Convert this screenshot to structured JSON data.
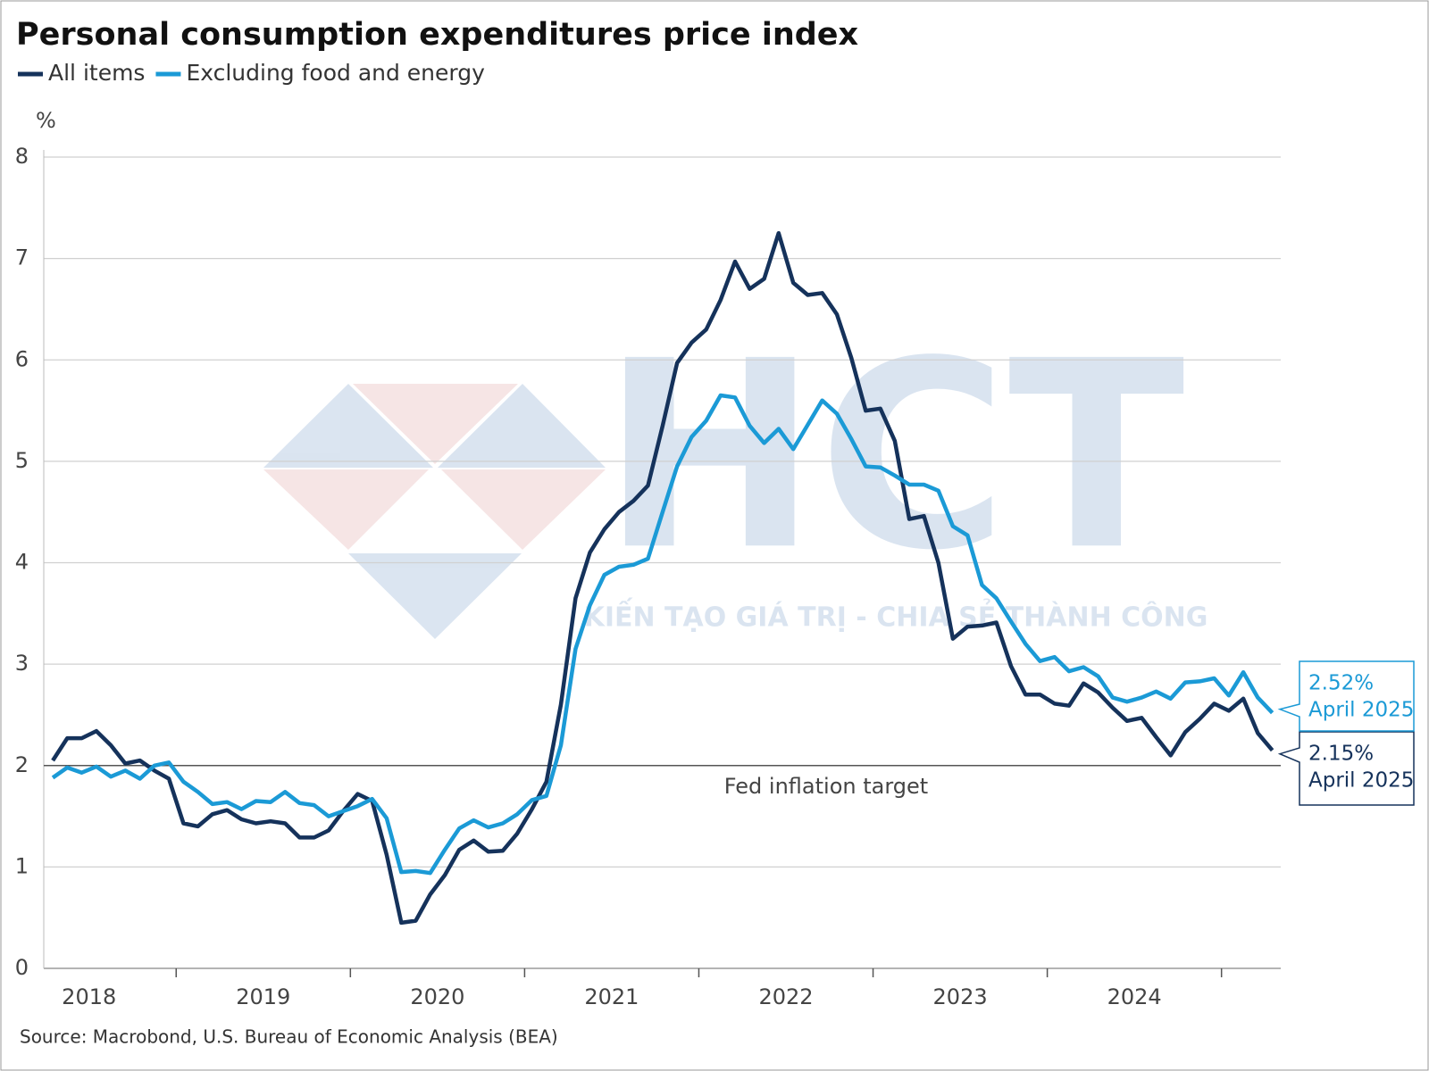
{
  "chart_data": {
    "type": "line",
    "title": "Personal consumption expenditures price index",
    "ylabel": "%",
    "source": "Source: Macrobond, U.S. Bureau of Economic Analysis (BEA)",
    "watermark": {
      "logo": "HCT",
      "tagline": "KIẾN TẠO GIÁ TRỊ - CHIA SẺ THÀNH CÔNG"
    },
    "x": [
      2018.292,
      2018.375,
      2018.458,
      2018.542,
      2018.625,
      2018.708,
      2018.792,
      2018.875,
      2018.958,
      2019.042,
      2019.125,
      2019.208,
      2019.292,
      2019.375,
      2019.458,
      2019.542,
      2019.625,
      2019.708,
      2019.792,
      2019.875,
      2019.958,
      2020.042,
      2020.125,
      2020.208,
      2020.292,
      2020.375,
      2020.458,
      2020.542,
      2020.625,
      2020.708,
      2020.792,
      2020.875,
      2020.958,
      2021.042,
      2021.125,
      2021.208,
      2021.292,
      2021.375,
      2021.458,
      2021.542,
      2021.625,
      2021.708,
      2021.792,
      2021.875,
      2021.958,
      2022.042,
      2022.125,
      2022.208,
      2022.292,
      2022.375,
      2022.458,
      2022.542,
      2022.625,
      2022.708,
      2022.792,
      2022.875,
      2022.958,
      2023.042,
      2023.125,
      2023.208,
      2023.292,
      2023.375,
      2023.458,
      2023.542,
      2023.625,
      2023.708,
      2023.792,
      2023.875,
      2023.958,
      2024.042,
      2024.125,
      2024.208,
      2024.292,
      2024.375,
      2024.458,
      2024.542,
      2024.625,
      2024.708,
      2024.792,
      2024.875,
      2024.958,
      2025.042,
      2025.125,
      2025.208,
      2025.292
    ],
    "series": [
      {
        "name": "All items",
        "color": "#15325b",
        "values": [
          2.05,
          2.27,
          2.27,
          2.34,
          2.2,
          2.02,
          2.05,
          1.95,
          1.87,
          1.43,
          1.4,
          1.52,
          1.56,
          1.47,
          1.43,
          1.45,
          1.43,
          1.29,
          1.29,
          1.36,
          1.55,
          1.72,
          1.65,
          1.12,
          0.45,
          0.47,
          0.73,
          0.92,
          1.17,
          1.26,
          1.15,
          1.16,
          1.33,
          1.57,
          1.84,
          2.6,
          3.65,
          4.1,
          4.33,
          4.5,
          4.61,
          4.76,
          5.35,
          5.97,
          6.17,
          6.3,
          6.59,
          6.97,
          6.7,
          6.8,
          7.25,
          6.76,
          6.64,
          6.66,
          6.45,
          6.02,
          5.5,
          5.52,
          5.2,
          4.43,
          4.46,
          4.0,
          3.25,
          3.37,
          3.38,
          3.41,
          2.98,
          2.7,
          2.7,
          2.61,
          2.59,
          2.81,
          2.72,
          2.57,
          2.44,
          2.47,
          2.28,
          2.1,
          2.33,
          2.46,
          2.61,
          2.54,
          2.66,
          2.32,
          2.15
        ],
        "callout": {
          "value_label": "2.15%",
          "date": "April 2025"
        }
      },
      {
        "name": "Excluding food and energy",
        "color": "#1b9ad6",
        "values": [
          1.88,
          1.98,
          1.93,
          1.99,
          1.89,
          1.95,
          1.87,
          2.0,
          2.03,
          1.84,
          1.74,
          1.62,
          1.64,
          1.57,
          1.65,
          1.64,
          1.74,
          1.63,
          1.61,
          1.5,
          1.55,
          1.6,
          1.67,
          1.48,
          0.95,
          0.96,
          0.94,
          1.17,
          1.38,
          1.46,
          1.39,
          1.43,
          1.52,
          1.66,
          1.7,
          2.2,
          3.15,
          3.58,
          3.88,
          3.96,
          3.98,
          4.04,
          4.5,
          4.95,
          5.24,
          5.4,
          5.65,
          5.63,
          5.35,
          5.18,
          5.32,
          5.12,
          5.36,
          5.6,
          5.47,
          5.22,
          4.95,
          4.94,
          4.86,
          4.77,
          4.77,
          4.71,
          4.36,
          4.27,
          3.78,
          3.65,
          3.42,
          3.2,
          3.03,
          3.07,
          2.93,
          2.97,
          2.88,
          2.67,
          2.63,
          2.67,
          2.73,
          2.66,
          2.82,
          2.83,
          2.86,
          2.69,
          2.92,
          2.67,
          2.52
        ],
        "callout": {
          "value_label": "2.52%",
          "date": "April 2025"
        }
      }
    ],
    "reference_line": {
      "value": 2,
      "label": "Fed inflation target"
    },
    "xlim": [
      2018.24,
      2025.34
    ],
    "xticks": [
      {
        "value": 2018.5,
        "label": "2018"
      },
      {
        "value": 2019.5,
        "label": "2019"
      },
      {
        "value": 2020.5,
        "label": "2020"
      },
      {
        "value": 2021.5,
        "label": "2021"
      },
      {
        "value": 2022.5,
        "label": "2022"
      },
      {
        "value": 2023.5,
        "label": "2023"
      },
      {
        "value": 2024.5,
        "label": "2024"
      }
    ],
    "xtick_marks": [
      2019,
      2020,
      2021,
      2022,
      2023,
      2024,
      2025
    ],
    "ylim": [
      0,
      8
    ],
    "yticks": [
      0,
      1,
      2,
      3,
      4,
      5,
      6,
      7,
      8
    ],
    "grid": true
  }
}
